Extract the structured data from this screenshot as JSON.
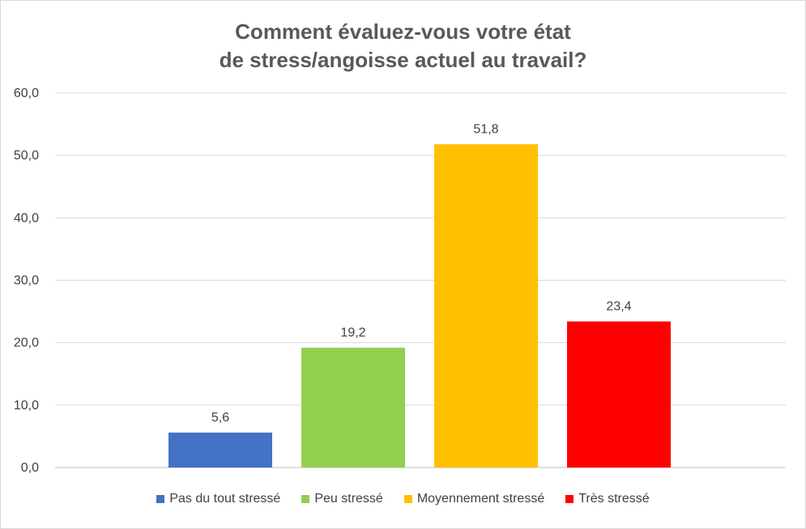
{
  "chart_data": {
    "type": "bar",
    "title_lines": [
      "Comment évaluez-vous votre état",
      "de stress/angoisse actuel au travail?"
    ],
    "categories": [
      "Pas du tout stressé",
      "Peu stressé",
      "Moyennement stressé",
      "Très stressé"
    ],
    "values": [
      5.6,
      19.2,
      51.8,
      23.4
    ],
    "value_labels": [
      "5,6",
      "19,2",
      "51,8",
      "23,4"
    ],
    "colors": [
      "#4472c4",
      "#92d050",
      "#ffc000",
      "#ff0000"
    ],
    "ylim": [
      0,
      60
    ],
    "yticks": [
      0,
      10,
      20,
      30,
      40,
      50,
      60
    ],
    "ytick_labels": [
      "0,0",
      "10,0",
      "20,0",
      "30,0",
      "40,0",
      "50,0",
      "60,0"
    ],
    "grid": true,
    "legend_position": "bottom",
    "xlabel": "",
    "ylabel": ""
  }
}
